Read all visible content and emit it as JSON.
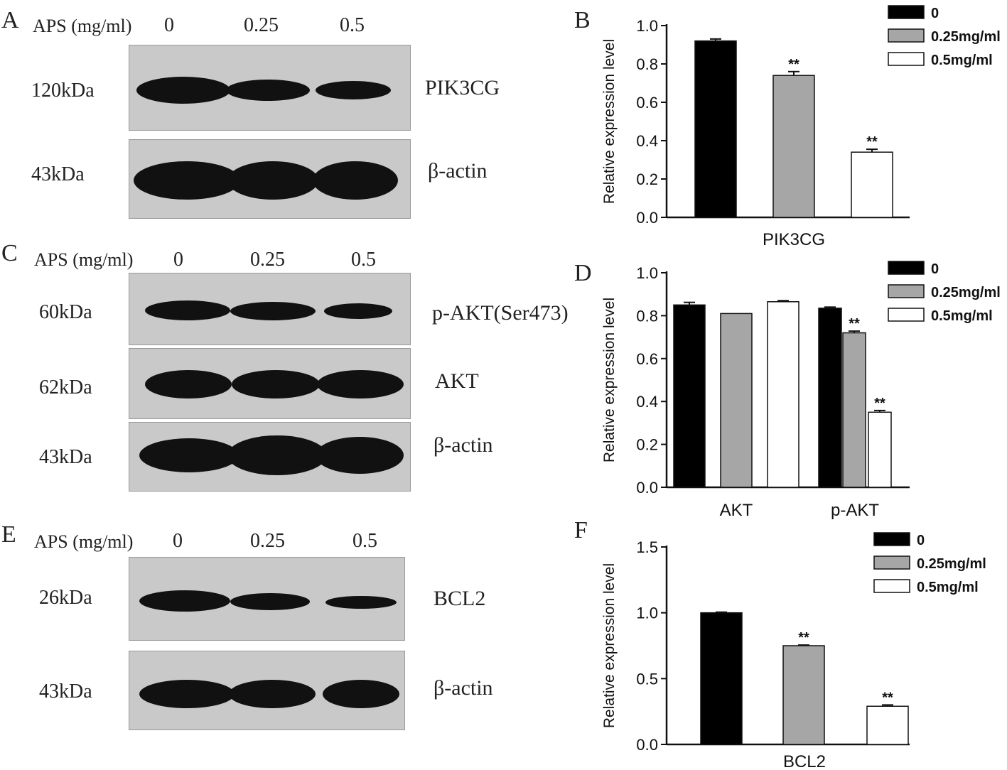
{
  "panels": {
    "A": {
      "letter": "A",
      "aps_label": "APS (mg/ml)",
      "lanes": [
        "0",
        "0.25",
        "0.5"
      ],
      "rows": [
        {
          "kda": "120kDa",
          "protein": "PIK3CG",
          "intensity": [
            0.95,
            0.8,
            0.7
          ]
        },
        {
          "kda": "43kDa",
          "protein": "β-actin",
          "intensity": [
            1.0,
            1.0,
            1.0
          ]
        }
      ]
    },
    "C": {
      "letter": "C",
      "aps_label": "APS (mg/ml)",
      "lanes": [
        "0",
        "0.25",
        "0.5"
      ],
      "rows": [
        {
          "kda": "60kDa",
          "protein": "p-AKT(Ser473)",
          "intensity": [
            0.9,
            0.8,
            0.65
          ]
        },
        {
          "kda": "62kDa",
          "protein": "AKT",
          "intensity": [
            0.95,
            0.95,
            0.95
          ]
        },
        {
          "kda": "43kDa",
          "protein": "β-actin",
          "intensity": [
            1.0,
            1.0,
            1.0
          ]
        }
      ]
    },
    "E": {
      "letter": "E",
      "aps_label": "APS (mg/ml)",
      "lanes": [
        "0",
        "0.25",
        "0.5"
      ],
      "rows": [
        {
          "kda": "26kDa",
          "protein": "BCL2",
          "intensity": [
            0.75,
            0.6,
            0.3
          ]
        },
        {
          "kda": "43kDa",
          "protein": "β-actin",
          "intensity": [
            0.95,
            0.95,
            0.95
          ]
        }
      ]
    }
  },
  "colors": {
    "s0": "#000000",
    "s1": "#a6a6a6",
    "s2": "#ffffff"
  },
  "chart_data": [
    {
      "panel": "B",
      "type": "bar",
      "ylabel": "Relative expression level",
      "ylim": [
        0,
        1.0
      ],
      "yticks": [
        "0.0",
        "0.2",
        "0.4",
        "0.6",
        "0.8",
        "1.0"
      ],
      "categories": [
        "PIK3CG"
      ],
      "legend": [
        "0",
        "0.25mg/ml",
        "0.5mg/ml"
      ],
      "series": [
        {
          "name": "0",
          "values": [
            0.92
          ],
          "errors": [
            0.01
          ],
          "sig": [
            ""
          ]
        },
        {
          "name": "0.25mg/ml",
          "values": [
            0.74
          ],
          "errors": [
            0.02
          ],
          "sig": [
            "**"
          ]
        },
        {
          "name": "0.5mg/ml",
          "values": [
            0.34
          ],
          "errors": [
            0.015
          ],
          "sig": [
            "**"
          ]
        }
      ]
    },
    {
      "panel": "D",
      "type": "bar",
      "ylabel": "Relative expression level",
      "ylim": [
        0,
        1.0
      ],
      "yticks": [
        "0.0",
        "0.2",
        "0.4",
        "0.6",
        "0.8",
        "1.0"
      ],
      "categories": [
        "AKT",
        "p-AKT"
      ],
      "legend": [
        "0",
        "0.25mg/ml",
        "0.5mg/ml"
      ],
      "series": [
        {
          "name": "0",
          "values": [
            0.85,
            0.835
          ],
          "errors": [
            0.012,
            0.005
          ],
          "sig": [
            "",
            ""
          ]
        },
        {
          "name": "0.25mg/ml",
          "values": [
            0.81,
            0.72
          ],
          "errors": [
            0,
            0.008
          ],
          "sig": [
            "",
            "**"
          ]
        },
        {
          "name": "0.5mg/ml",
          "values": [
            0.865,
            0.35
          ],
          "errors": [
            0.005,
            0.008
          ],
          "sig": [
            "",
            "**"
          ]
        }
      ]
    },
    {
      "panel": "F",
      "type": "bar",
      "ylabel": "Relative expression level",
      "ylim": [
        0,
        1.5
      ],
      "yticks": [
        "0.0",
        "0.5",
        "1.0",
        "1.5"
      ],
      "categories": [
        "BCL2"
      ],
      "legend": [
        "0",
        "0.25mg/ml",
        "0.5mg/ml"
      ],
      "series": [
        {
          "name": "0",
          "values": [
            1.0
          ],
          "errors": [
            0.005
          ],
          "sig": [
            ""
          ]
        },
        {
          "name": "0.25mg/ml",
          "values": [
            0.75
          ],
          "errors": [
            0.005
          ],
          "sig": [
            "**"
          ]
        },
        {
          "name": "0.5mg/ml",
          "values": [
            0.29
          ],
          "errors": [
            0.01
          ],
          "sig": [
            "**"
          ]
        }
      ]
    }
  ],
  "chart_letters": {
    "B": "B",
    "D": "D",
    "F": "F"
  }
}
